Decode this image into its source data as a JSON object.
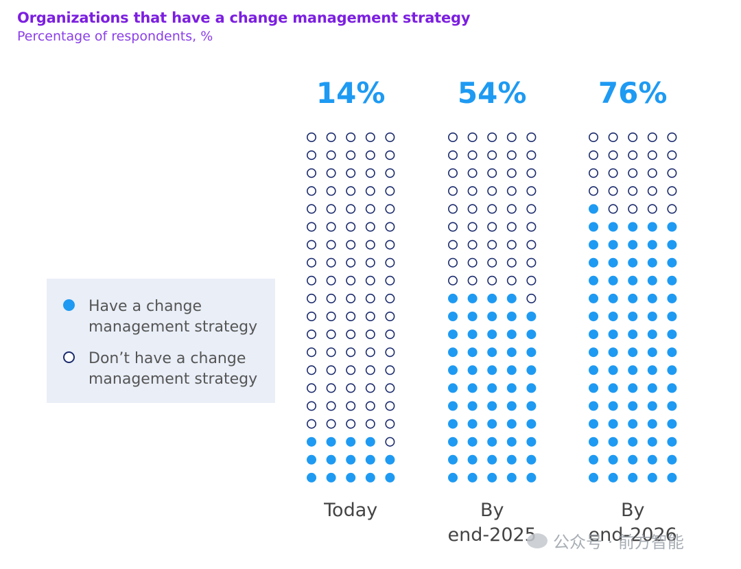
{
  "title": "Organizations that have a change management strategy",
  "subtitle": "Percentage of respondents, %",
  "legend": {
    "have": "Have a change management strategy",
    "dont_have": "Don’t have a change management strategy"
  },
  "watermark": "公众号 · 前方智能",
  "colors": {
    "filled": "#1e9af2",
    "empty_stroke": "#1a2a6c",
    "percent": "#1e9af2"
  },
  "chart_data": {
    "type": "waffle",
    "title": "Organizations that have a change management strategy",
    "subtitle": "Percentage of respondents, %",
    "grid": {
      "rows": 20,
      "columns": 5,
      "total": 100
    },
    "legend": [
      "Have a change management strategy",
      "Don’t have a change management strategy"
    ],
    "categories": [
      {
        "label_lines": [
          "Today"
        ],
        "value": 14,
        "value_label": "14%"
      },
      {
        "label_lines": [
          "By",
          "end-2025"
        ],
        "value": 54,
        "value_label": "54%"
      },
      {
        "label_lines": [
          "By",
          "end-2026"
        ],
        "value": 76,
        "value_label": "76%"
      }
    ]
  }
}
